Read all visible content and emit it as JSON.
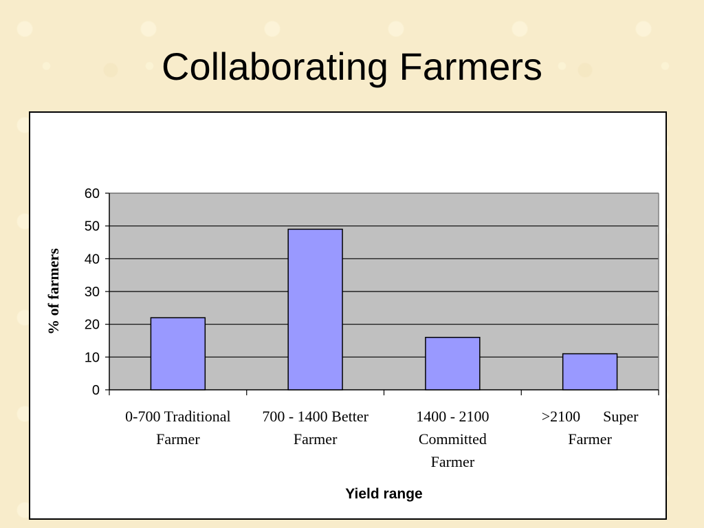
{
  "slide": {
    "title": "Collaborating Farmers"
  },
  "colors": {
    "bar": "#9999ff",
    "plot_background": "#c0c0c0",
    "gridline": "#000000"
  },
  "chart_data": {
    "type": "bar",
    "title": "",
    "xlabel": "Yield range",
    "ylabel": "% of farmers",
    "categories": [
      "0-700 Traditional Farmer",
      "700 - 1400 Better Farmer",
      "1400 - 2100 Committed Farmer",
      ">2100 Super Farmer"
    ],
    "category_label_lines": [
      [
        "0-700 Traditional",
        "Farmer"
      ],
      [
        "700 - 1400 Better",
        "Farmer"
      ],
      [
        "1400 - 2100",
        "Committed",
        "Farmer"
      ],
      [
        ">2100      Super",
        "Farmer"
      ]
    ],
    "values": [
      22,
      49,
      16,
      11
    ],
    "ylim": [
      0,
      60
    ],
    "yticks": [
      0,
      10,
      20,
      30,
      40,
      50,
      60
    ],
    "grid": true,
    "legend": "none"
  }
}
